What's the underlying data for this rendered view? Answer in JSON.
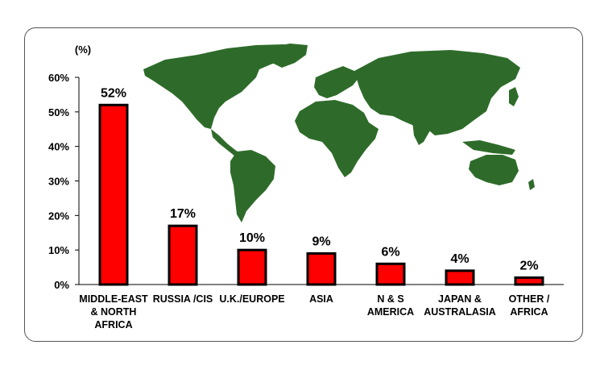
{
  "chart_data": {
    "type": "bar",
    "ylabel": "(%)",
    "ylim": [
      0,
      60
    ],
    "yticks": [
      "0%",
      "10%",
      "20%",
      "30%",
      "40%",
      "50%",
      "60%"
    ],
    "categories": [
      [
        "MIDDLE-EAST",
        "& NORTH",
        "AFRICA"
      ],
      [
        "RUSSIA /CIS"
      ],
      [
        "U.K./EUROPE"
      ],
      [
        "ASIA"
      ],
      [
        "N & S",
        "AMERICA"
      ],
      [
        "JAPAN &",
        "AUSTRALASIA"
      ],
      [
        "OTHER /",
        "AFRICA"
      ]
    ],
    "values": [
      52,
      17,
      10,
      9,
      6,
      4,
      2
    ],
    "data_labels": [
      "52%",
      "17%",
      "10%",
      "9%",
      "6%",
      "4%",
      "2%"
    ],
    "bar_color": "#ff0000",
    "bar_outline": "#000000",
    "grid": false,
    "background_image": "world-map"
  },
  "map_color": "#2e6b2a"
}
